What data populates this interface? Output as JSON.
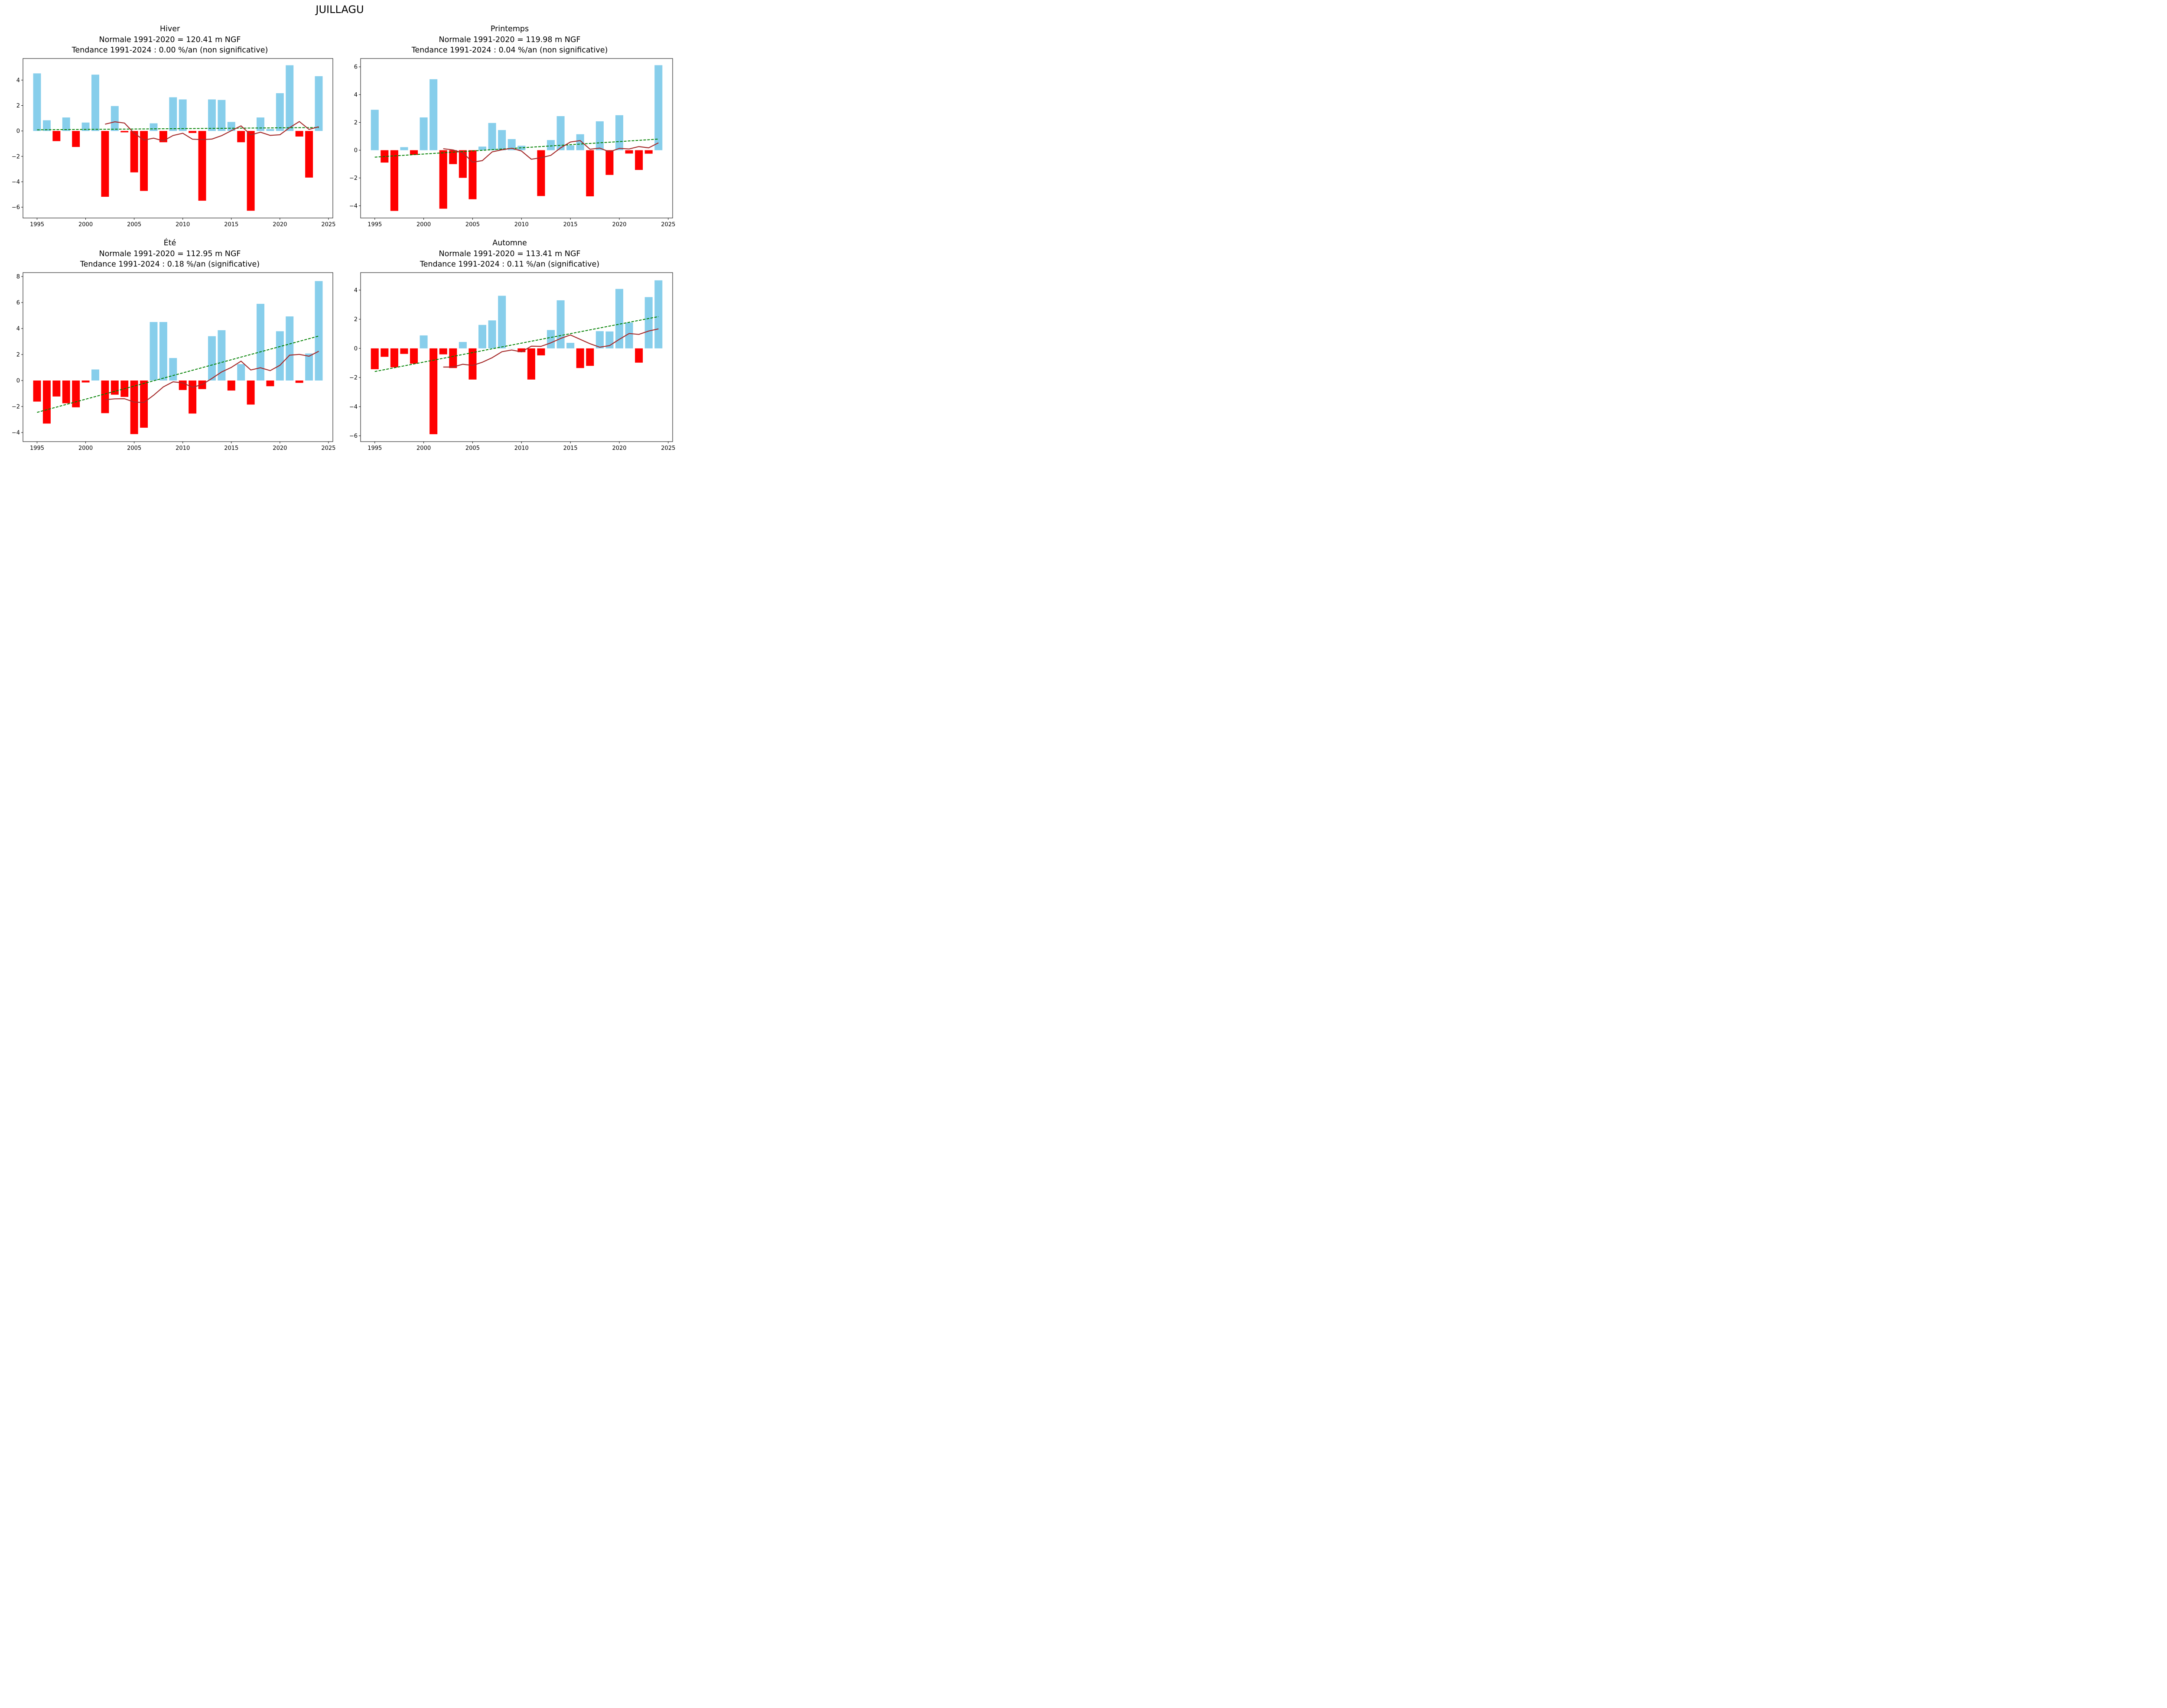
{
  "figure_title": "JUILLAGU",
  "colors": {
    "positive": "#87CEEB",
    "negative": "#FF0000",
    "moving_average": "#A52A2A",
    "trend": "#008000"
  },
  "chart_data": [
    {
      "type": "bar",
      "title": "Hiver",
      "subtitle_normal": "Normale 1991-2020 = 120.41 m NGF",
      "subtitle_trend": "Tendance 1991-2024 : 0.00 %/an (non significative)",
      "title_full": "Hiver\nNormale 1991-2020 = 120.41 m NGF\nTendance 1991-2024 : 0.00 %/an (non significative)",
      "xlabel": "",
      "ylabel": "",
      "xlim": [
        1993.55,
        2025.45
      ],
      "ylim": [
        -6.85,
        5.7
      ],
      "xticks": [
        1995,
        2000,
        2005,
        2010,
        2015,
        2020,
        2025
      ],
      "yticks": [
        -6,
        -4,
        -2,
        0,
        2,
        4
      ],
      "x": [
        1995,
        1996,
        1997,
        1998,
        1999,
        2000,
        2001,
        2002,
        2003,
        2004,
        2005,
        2006,
        2007,
        2008,
        2009,
        2010,
        2011,
        2012,
        2013,
        2014,
        2015,
        2016,
        2017,
        2018,
        2019,
        2020,
        2021,
        2022,
        2023,
        2024
      ],
      "values": [
        4.53,
        0.84,
        -0.8,
        1.06,
        -1.26,
        0.66,
        4.43,
        -5.18,
        1.96,
        -0.11,
        -3.26,
        -4.72,
        0.6,
        -0.89,
        2.65,
        2.48,
        -0.16,
        -5.49,
        2.48,
        2.44,
        0.71,
        -0.89,
        -6.28,
        1.06,
        0.15,
        2.97,
        5.17,
        -0.44,
        -3.67,
        4.31
      ],
      "moving_average": {
        "x": [
          2002,
          2003,
          2004,
          2005,
          2006,
          2007,
          2008,
          2009,
          2010,
          2011,
          2012,
          2013,
          2014,
          2015,
          2016,
          2017,
          2018,
          2019,
          2020,
          2021,
          2022,
          2023,
          2024
        ],
        "values": [
          0.53,
          0.72,
          0.62,
          -0.18,
          -0.72,
          -0.57,
          -0.78,
          -0.36,
          -0.18,
          -0.65,
          -0.68,
          -0.64,
          -0.37,
          0.02,
          0.4,
          -0.31,
          -0.1,
          -0.35,
          -0.3,
          0.26,
          0.74,
          0.12,
          0.33
        ]
      },
      "trend": {
        "x": [
          1995,
          2024
        ],
        "values": [
          0.09,
          0.27
        ]
      },
      "grid": false,
      "legend": "none"
    },
    {
      "type": "bar",
      "title": "Printemps",
      "subtitle_normal": "Normale 1991-2020 = 119.98 m NGF",
      "subtitle_trend": "Tendance 1991-2024 : 0.04 %/an (non significative)",
      "xlabel": "",
      "ylabel": "",
      "xlim": [
        1993.55,
        2025.45
      ],
      "ylim": [
        -4.88,
        6.6
      ],
      "xticks": [
        1995,
        2000,
        2005,
        2010,
        2015,
        2020,
        2025
      ],
      "yticks": [
        -4,
        -2,
        0,
        2,
        4,
        6
      ],
      "x": [
        1995,
        1996,
        1997,
        1998,
        1999,
        2000,
        2001,
        2002,
        2003,
        2004,
        2005,
        2006,
        2007,
        2008,
        2009,
        2010,
        2011,
        2012,
        2013,
        2014,
        2015,
        2016,
        2017,
        2018,
        2019,
        2020,
        2021,
        2022,
        2023,
        2024
      ],
      "values": [
        2.91,
        -0.89,
        -4.37,
        0.22,
        -0.34,
        2.36,
        5.11,
        -4.21,
        -1.0,
        -1.99,
        -3.53,
        0.26,
        1.96,
        1.45,
        0.8,
        0.32,
        0.0,
        -3.3,
        0.73,
        2.45,
        0.35,
        1.15,
        -3.32,
        2.08,
        -1.78,
        2.52,
        -0.24,
        -1.42,
        -0.25,
        6.12
      ],
      "moving_average": {
        "x": [
          2002,
          2003,
          2004,
          2005,
          2006,
          2007,
          2008,
          2009,
          2010,
          2011,
          2012,
          2013,
          2014,
          2015,
          2016,
          2017,
          2018,
          2019,
          2020,
          2021,
          2022,
          2023,
          2024
        ],
        "values": [
          0.11,
          0.02,
          -0.19,
          -0.86,
          -0.75,
          -0.12,
          0.03,
          0.14,
          -0.06,
          -0.65,
          -0.54,
          -0.37,
          0.17,
          0.59,
          0.69,
          0.07,
          0.15,
          -0.12,
          0.13,
          0.09,
          0.26,
          0.17,
          0.53
        ]
      },
      "trend": {
        "x": [
          1995,
          2024
        ],
        "values": [
          -0.5,
          0.8
        ]
      },
      "grid": false,
      "legend": "none"
    },
    {
      "type": "bar",
      "title": "Été",
      "subtitle_normal": "Normale 1991-2020 = 112.95 m NGF",
      "subtitle_trend": "Tendance 1991-2024 : 0.18 %/an (significative)",
      "xlabel": "",
      "ylabel": "",
      "xlim": [
        1993.55,
        2025.45
      ],
      "ylim": [
        -4.7,
        8.3
      ],
      "xticks": [
        1995,
        2000,
        2005,
        2010,
        2015,
        2020,
        2025
      ],
      "yticks": [
        -4,
        -2,
        0,
        2,
        4,
        6,
        8
      ],
      "x": [
        1995,
        1996,
        1997,
        1998,
        1999,
        2000,
        2001,
        2002,
        2003,
        2004,
        2005,
        2006,
        2007,
        2008,
        2009,
        2010,
        2011,
        2012,
        2013,
        2014,
        2015,
        2016,
        2017,
        2018,
        2019,
        2020,
        2021,
        2022,
        2023,
        2024
      ],
      "values": [
        -1.62,
        -3.31,
        -1.23,
        -1.75,
        -2.06,
        -0.15,
        0.85,
        -2.51,
        -1.09,
        -1.26,
        -4.12,
        -3.63,
        4.5,
        4.5,
        1.73,
        -0.73,
        -2.54,
        -0.66,
        3.41,
        3.87,
        -0.77,
        1.26,
        -1.85,
        5.9,
        -0.44,
        3.79,
        4.93,
        -0.18,
        2.08,
        7.65
      ],
      "moving_average": {
        "x": [
          2002,
          2003,
          2004,
          2005,
          2006,
          2007,
          2008,
          2009,
          2010,
          2011,
          2012,
          2013,
          2014,
          2015,
          2016,
          2017,
          2018,
          2019,
          2020,
          2021,
          2022,
          2023,
          2024
        ],
        "values": [
          -1.47,
          -1.41,
          -1.4,
          -1.66,
          -1.69,
          -1.13,
          -0.49,
          -0.1,
          -0.18,
          -0.52,
          -0.31,
          0.16,
          0.66,
          1.01,
          1.49,
          0.81,
          0.98,
          0.76,
          1.17,
          1.95,
          2.01,
          1.87,
          2.25
        ]
      },
      "trend": {
        "x": [
          1995,
          2024
        ],
        "values": [
          -2.45,
          3.42
        ]
      },
      "grid": false,
      "legend": "none"
    },
    {
      "type": "bar",
      "title": "Automne",
      "subtitle_normal": "Normale 1991-2020 = 113.41 m NGF",
      "subtitle_trend": "Tendance 1991-2024 : 0.11 %/an (significative)",
      "xlabel": "",
      "ylabel": "",
      "xlim": [
        1993.55,
        2025.45
      ],
      "ylim": [
        -6.4,
        5.2
      ],
      "xticks": [
        1995,
        2000,
        2005,
        2010,
        2015,
        2020,
        2025
      ],
      "yticks": [
        -6,
        -4,
        -2,
        0,
        2,
        4
      ],
      "x": [
        1995,
        1996,
        1997,
        1998,
        1999,
        2000,
        2001,
        2002,
        2003,
        2004,
        2005,
        2006,
        2007,
        2008,
        2009,
        2010,
        2011,
        2012,
        2013,
        2014,
        2015,
        2016,
        2017,
        2018,
        2019,
        2020,
        2021,
        2022,
        2023,
        2024
      ],
      "values": [
        -1.43,
        -0.58,
        -1.3,
        -0.38,
        -1.05,
        0.89,
        -5.89,
        -0.41,
        -1.35,
        0.44,
        -2.14,
        1.61,
        1.92,
        3.61,
        0.01,
        -0.26,
        -2.14,
        -0.48,
        1.26,
        3.3,
        0.38,
        -1.35,
        -1.2,
        1.18,
        1.16,
        4.08,
        1.77,
        -0.98,
        3.52,
        4.67
      ],
      "moving_average": {
        "x": [
          2002,
          2003,
          2004,
          2005,
          2006,
          2007,
          2008,
          2009,
          2010,
          2011,
          2012,
          2013,
          2014,
          2015,
          2016,
          2017,
          2018,
          2019,
          2020,
          2021,
          2022,
          2023,
          2024
        ],
        "values": [
          -1.28,
          -1.28,
          -1.09,
          -1.17,
          -0.95,
          -0.64,
          -0.23,
          -0.11,
          -0.24,
          0.15,
          0.14,
          0.38,
          0.68,
          0.92,
          0.62,
          0.32,
          0.08,
          0.19,
          0.62,
          1.02,
          0.96,
          1.19,
          1.34
        ]
      },
      "trend": {
        "x": [
          1995,
          2024
        ],
        "values": [
          -1.59,
          2.18
        ]
      },
      "grid": false,
      "legend": "none"
    }
  ]
}
